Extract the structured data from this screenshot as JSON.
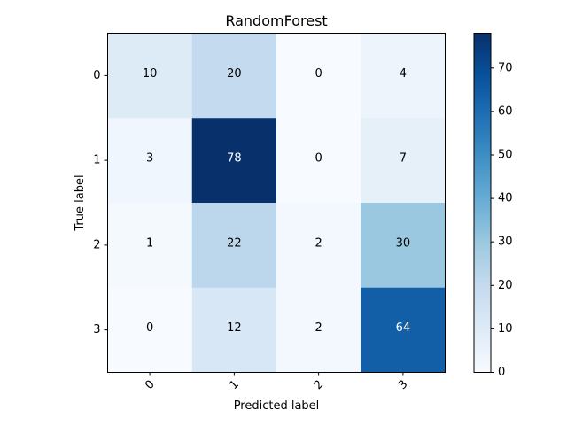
{
  "chart_data": {
    "type": "heatmap",
    "title": "RandomForest",
    "xlabel": "Predicted label",
    "ylabel": "True label",
    "x_categories": [
      "0",
      "1",
      "2",
      "3"
    ],
    "y_categories": [
      "0",
      "1",
      "2",
      "3"
    ],
    "values": [
      [
        10,
        20,
        0,
        4
      ],
      [
        3,
        78,
        0,
        7
      ],
      [
        1,
        22,
        2,
        30
      ],
      [
        0,
        12,
        2,
        64
      ]
    ],
    "colormap": "Blues",
    "colorbar": {
      "range": [
        0,
        78
      ],
      "ticks": [
        0,
        10,
        20,
        30,
        40,
        50,
        60,
        70
      ]
    },
    "text_threshold": 39,
    "colors": {
      "text_dark": "#000000",
      "text_light": "#ffffff",
      "axis": "#000000"
    }
  }
}
